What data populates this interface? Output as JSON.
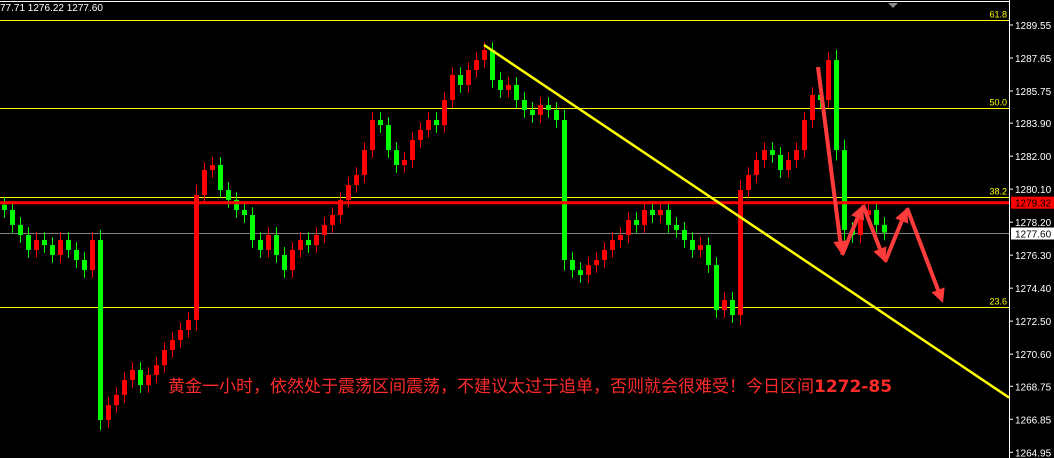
{
  "header": {
    "ohlc_text": "77.71 1276.22 1277.60"
  },
  "annotation": {
    "text": "黄金一小时，依然处于震荡区间震荡，不建议太过于追单，否则就会很难受！今日区间",
    "range": "1272-85"
  },
  "colors": {
    "background": "#000000",
    "bull": "#ff0000",
    "bear": "#00ff00",
    "fib": "#ffff00",
    "trendline": "#ffff00",
    "price_line": "#ff0000",
    "bid_line": "#808080",
    "arrow": "#ff3b3b"
  },
  "chart_data": {
    "type": "candlestick",
    "y_ticks": [
      1289.55,
      1287.65,
      1285.75,
      1283.9,
      1282.0,
      1280.1,
      1278.2,
      1276.3,
      1274.4,
      1272.5,
      1270.6,
      1268.75,
      1266.85,
      1264.95
    ],
    "ylim": [
      1264.7,
      1290.2
    ],
    "close": [
      1278.9,
      1278.04,
      1277.46,
      1276.6,
      1277.17,
      1276.88,
      1276.31,
      1277.17,
      1276.6,
      1276.02,
      1275.44,
      1277.17,
      1266.81,
      1267.67,
      1268.25,
      1269.11,
      1269.69,
      1268.82,
      1269.4,
      1269.97,
      1270.84,
      1271.42,
      1271.99,
      1272.57,
      1279.76,
      1281.2,
      1281.49,
      1280.05,
      1279.48,
      1278.9,
      1278.61,
      1277.17,
      1276.6,
      1277.46,
      1276.31,
      1275.44,
      1276.6,
      1277.17,
      1276.88,
      1277.46,
      1278.04,
      1278.61,
      1279.48,
      1280.34,
      1280.91,
      1282.35,
      1284.08,
      1283.79,
      1282.35,
      1281.49,
      1281.78,
      1282.93,
      1283.51,
      1284.08,
      1283.79,
      1285.23,
      1286.67,
      1286.1,
      1286.96,
      1287.53,
      1288.11,
      1286.38,
      1285.81,
      1286.1,
      1285.23,
      1284.66,
      1284.37,
      1284.94,
      1284.66,
      1284.08,
      1276.02,
      1275.44,
      1275.16,
      1275.73,
      1276.02,
      1276.6,
      1277.17,
      1277.46,
      1278.32,
      1278.04,
      1278.9,
      1278.61,
      1278.9,
      1278.04,
      1277.75,
      1277.17,
      1276.6,
      1276.88,
      1275.73,
      1273.14,
      1273.72,
      1272.85,
      1280.05,
      1280.91,
      1281.78,
      1282.35,
      1282.07,
      1281.2,
      1281.78,
      1282.35,
      1284.08,
      1285.52,
      1285.23,
      1287.53,
      1282.35,
      1277.75,
      1277.46,
      1278.61,
      1278.9,
      1278.04,
      1277.6
    ],
    "fib_levels": [
      {
        "label": "61.8",
        "price": 1289.85
      },
      {
        "label": "50.0",
        "price": 1284.75
      },
      {
        "label": "38.2",
        "price": 1279.65
      },
      {
        "label": "23.6",
        "price": 1273.3
      }
    ],
    "current_price": {
      "label": "1279.32",
      "price": 1279.32
    },
    "bid_price": {
      "label": "1277.60",
      "price": 1277.6
    },
    "trendline": {
      "from_price": 1288.4,
      "to_price": 1268.1
    }
  }
}
